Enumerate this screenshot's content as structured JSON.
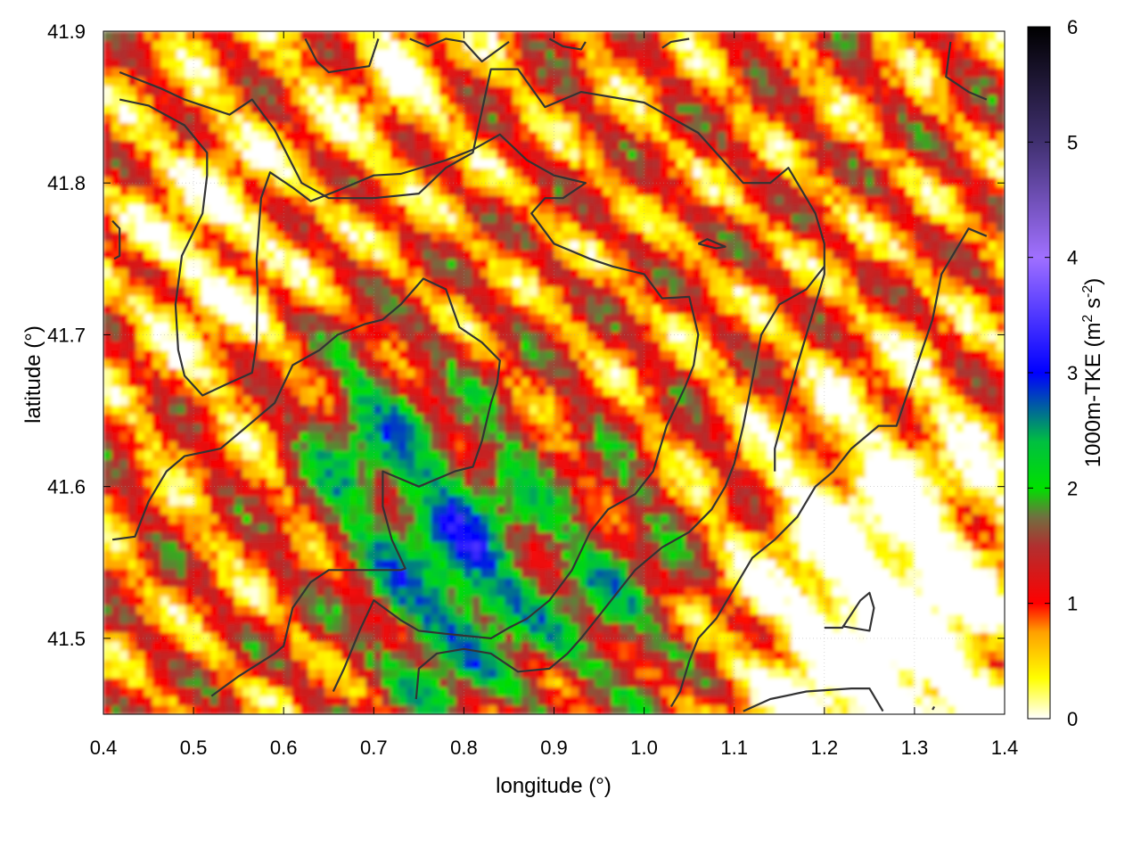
{
  "chart_data": {
    "type": "heatmap",
    "title": "",
    "xlabel": "longitude (°)",
    "ylabel": "latitude (°)",
    "colorbar_label": "1000m-TKE (m² s⁻²)",
    "colorbar_label_parts": [
      "1000m-TKE (m",
      "2",
      " s",
      "-2",
      ")"
    ],
    "xlim": [
      0.4,
      1.4
    ],
    "ylim": [
      41.45,
      41.9
    ],
    "x_ticks": [
      0.4,
      0.5,
      0.6,
      0.7,
      0.8,
      0.9,
      1.0,
      1.1,
      1.2,
      1.3,
      1.4
    ],
    "y_ticks": [
      41.5,
      41.6,
      41.7,
      41.8,
      41.9
    ],
    "x_tick_labels": [
      "0.4",
      "0.5",
      "0.6",
      "0.7",
      "0.8",
      "0.9",
      "1.0",
      "1.1",
      "1.2",
      "1.3",
      "1.4"
    ],
    "y_tick_labels": [
      "41.5",
      "41.6",
      "41.7",
      "41.8",
      "41.9"
    ],
    "colorbar_range": [
      0,
      6
    ],
    "colorbar_ticks": [
      0,
      1,
      2,
      3,
      4,
      5,
      6
    ],
    "colorbar_tick_labels": [
      "0",
      "1",
      "2",
      "3",
      "4",
      "5",
      "6"
    ],
    "colormap_stops": [
      {
        "value": 0.0,
        "color": "#ffffff"
      },
      {
        "value": 0.35,
        "color": "#ffff00"
      },
      {
        "value": 0.75,
        "color": "#ffa000"
      },
      {
        "value": 1.0,
        "color": "#ff0000"
      },
      {
        "value": 1.5,
        "color": "#b03030"
      },
      {
        "value": 1.75,
        "color": "#707040"
      },
      {
        "value": 2.0,
        "color": "#00e000"
      },
      {
        "value": 2.4,
        "color": "#00c040"
      },
      {
        "value": 3.0,
        "color": "#0000ff"
      },
      {
        "value": 4.0,
        "color": "#a070ff"
      },
      {
        "value": 5.0,
        "color": "#403070"
      },
      {
        "value": 6.0,
        "color": "#000000"
      }
    ],
    "grid": true,
    "contour_color": "#333333",
    "contours": [
      [
        [
          0.418,
          41.873
        ],
        [
          0.465,
          41.862
        ],
        [
          0.49,
          41.855
        ],
        [
          0.54,
          41.845
        ],
        [
          0.565,
          41.855
        ],
        [
          0.59,
          41.835
        ],
        [
          0.62,
          41.8
        ],
        [
          0.65,
          41.79
        ],
        [
          0.7,
          41.79
        ],
        [
          0.75,
          41.793
        ],
        [
          0.78,
          41.81
        ],
        [
          0.81,
          41.82
        ],
        [
          0.83,
          41.875
        ],
        [
          0.86,
          41.875
        ],
        [
          0.89,
          41.85
        ],
        [
          0.93,
          41.86
        ],
        [
          1.0,
          41.853
        ],
        [
          1.06,
          41.833
        ],
        [
          1.11,
          41.8
        ],
        [
          1.14,
          41.8
        ],
        [
          1.16,
          41.81
        ],
        [
          1.19,
          41.78
        ],
        [
          1.2,
          41.76
        ],
        [
          1.2,
          41.74
        ],
        [
          1.17,
          41.68
        ],
        [
          1.145,
          41.625
        ],
        [
          1.145,
          41.61
        ]
      ],
      [
        [
          0.418,
          41.855
        ],
        [
          0.45,
          41.851
        ],
        [
          0.49,
          41.838
        ],
        [
          0.515,
          41.82
        ],
        [
          0.515,
          41.805
        ],
        [
          0.51,
          41.78
        ],
        [
          0.487,
          41.752
        ],
        [
          0.48,
          41.72
        ],
        [
          0.483,
          41.69
        ],
        [
          0.49,
          41.673
        ],
        [
          0.51,
          41.66
        ],
        [
          0.535,
          41.667
        ],
        [
          0.565,
          41.675
        ],
        [
          0.57,
          41.695
        ],
        [
          0.571,
          41.73
        ],
        [
          0.57,
          41.75
        ],
        [
          0.575,
          41.79
        ],
        [
          0.585,
          41.807
        ],
        [
          0.61,
          41.797
        ],
        [
          0.63,
          41.788
        ],
        [
          0.66,
          41.795
        ],
        [
          0.7,
          41.805
        ],
        [
          0.73,
          41.806
        ],
        [
          0.78,
          41.815
        ],
        [
          0.81,
          41.822
        ],
        [
          0.84,
          41.832
        ],
        [
          0.87,
          41.815
        ],
        [
          0.9,
          41.805
        ],
        [
          0.935,
          41.8
        ],
        [
          0.91,
          41.79
        ],
        [
          0.89,
          41.79
        ],
        [
          0.875,
          41.78
        ],
        [
          0.9,
          41.76
        ],
        [
          0.94,
          41.75
        ],
        [
          0.965,
          41.745
        ],
        [
          1.0,
          41.74
        ],
        [
          1.02,
          41.724
        ],
        [
          1.05,
          41.725
        ],
        [
          1.06,
          41.7
        ],
        [
          1.055,
          41.68
        ],
        [
          1.045,
          41.665
        ],
        [
          1.025,
          41.64
        ],
        [
          1.01,
          41.61
        ],
        [
          0.99,
          41.595
        ],
        [
          0.96,
          41.585
        ],
        [
          0.94,
          41.57
        ],
        [
          0.92,
          41.545
        ],
        [
          0.895,
          41.525
        ],
        [
          0.87,
          41.513
        ],
        [
          0.85,
          41.507
        ],
        [
          0.83,
          41.5
        ],
        [
          0.78,
          41.503
        ],
        [
          0.75,
          41.505
        ],
        [
          0.73,
          41.512
        ],
        [
          0.7,
          41.525
        ],
        [
          0.685,
          41.506
        ],
        [
          0.667,
          41.48
        ],
        [
          0.655,
          41.465
        ]
      ],
      [
        [
          0.41,
          41.565
        ],
        [
          0.435,
          41.567
        ],
        [
          0.45,
          41.59
        ],
        [
          0.47,
          41.61
        ],
        [
          0.49,
          41.62
        ],
        [
          0.53,
          41.625
        ],
        [
          0.56,
          41.64
        ],
        [
          0.59,
          41.655
        ],
        [
          0.61,
          41.68
        ],
        [
          0.64,
          41.69
        ],
        [
          0.66,
          41.7
        ],
        [
          0.69,
          41.707
        ],
        [
          0.71,
          41.71
        ],
        [
          0.73,
          41.72
        ],
        [
          0.755,
          41.737
        ],
        [
          0.78,
          41.73
        ],
        [
          0.795,
          41.705
        ],
        [
          0.82,
          41.695
        ],
        [
          0.84,
          41.683
        ],
        [
          0.837,
          41.668
        ],
        [
          0.83,
          41.655
        ],
        [
          0.82,
          41.63
        ],
        [
          0.81,
          41.613
        ],
        [
          0.79,
          41.61
        ],
        [
          0.75,
          41.6
        ],
        [
          0.71,
          41.61
        ],
        [
          0.71,
          41.587
        ],
        [
          0.72,
          41.565
        ],
        [
          0.735,
          41.546
        ],
        [
          0.73,
          41.545
        ],
        [
          0.68,
          41.545
        ],
        [
          0.65,
          41.545
        ],
        [
          0.63,
          41.537
        ],
        [
          0.61,
          41.52
        ],
        [
          0.6,
          41.495
        ],
        [
          0.59,
          41.49
        ],
        [
          0.55,
          41.475
        ],
        [
          0.52,
          41.462
        ]
      ],
      [
        [
          0.747,
          41.46
        ],
        [
          0.75,
          41.48
        ],
        [
          0.77,
          41.49
        ],
        [
          0.8,
          41.493
        ],
        [
          0.83,
          41.49
        ],
        [
          0.86,
          41.478
        ],
        [
          0.895,
          41.48
        ],
        [
          0.915,
          41.49
        ],
        [
          0.93,
          41.5
        ],
        [
          0.95,
          41.515
        ],
        [
          0.97,
          41.53
        ],
        [
          0.99,
          41.545
        ],
        [
          1.02,
          41.56
        ],
        [
          1.05,
          41.57
        ],
        [
          1.075,
          41.585
        ],
        [
          1.09,
          41.6
        ],
        [
          1.1,
          41.615
        ],
        [
          1.11,
          41.64
        ],
        [
          1.12,
          41.67
        ],
        [
          1.13,
          41.7
        ],
        [
          1.15,
          41.72
        ],
        [
          1.18,
          41.73
        ],
        [
          1.2,
          41.745
        ]
      ],
      [
        [
          1.03,
          41.455
        ],
        [
          1.04,
          41.465
        ],
        [
          1.05,
          41.485
        ],
        [
          1.06,
          41.5
        ],
        [
          1.08,
          41.513
        ],
        [
          1.1,
          41.533
        ],
        [
          1.12,
          41.553
        ],
        [
          1.145,
          41.565
        ],
        [
          1.17,
          41.58
        ],
        [
          1.19,
          41.6
        ],
        [
          1.21,
          41.61
        ],
        [
          1.23,
          41.625
        ],
        [
          1.26,
          41.64
        ],
        [
          1.28,
          41.64
        ],
        [
          1.3,
          41.675
        ],
        [
          1.32,
          41.71
        ],
        [
          1.33,
          41.74
        ],
        [
          1.36,
          41.77
        ],
        [
          1.38,
          41.765
        ]
      ],
      [
        [
          1.11,
          41.452
        ],
        [
          1.14,
          41.46
        ],
        [
          1.18,
          41.465
        ],
        [
          1.23,
          41.467
        ],
        [
          1.25,
          41.467
        ],
        [
          1.265,
          41.452
        ]
      ],
      [
        [
          1.2,
          41.507
        ],
        [
          1.22,
          41.507
        ],
        [
          1.24,
          41.525
        ],
        [
          1.25,
          41.53
        ],
        [
          1.255,
          41.52
        ],
        [
          1.25,
          41.505
        ],
        [
          1.22,
          41.508
        ]
      ],
      [
        [
          0.74,
          41.895
        ],
        [
          0.76,
          41.89
        ],
        [
          0.78,
          41.895
        ],
        [
          0.8,
          41.893
        ],
        [
          0.82,
          41.88
        ],
        [
          0.85,
          41.893
        ]
      ],
      [
        [
          0.624,
          41.895
        ],
        [
          0.637,
          41.88
        ],
        [
          0.65,
          41.873
        ],
        [
          0.695,
          41.877
        ],
        [
          0.705,
          41.895
        ]
      ],
      [
        [
          0.895,
          41.895
        ],
        [
          0.91,
          41.89
        ],
        [
          0.93,
          41.888
        ],
        [
          0.935,
          41.893
        ]
      ],
      [
        [
          1.02,
          41.889
        ],
        [
          1.03,
          41.893
        ],
        [
          1.05,
          41.895
        ]
      ],
      [
        [
          1.34,
          41.893
        ],
        [
          1.335,
          41.87
        ],
        [
          1.36,
          41.86
        ],
        [
          1.38,
          41.855
        ]
      ],
      [
        [
          0.41,
          41.775
        ],
        [
          0.418,
          41.77
        ],
        [
          0.418,
          41.752
        ],
        [
          0.412,
          41.75
        ]
      ],
      [
        [
          1.06,
          41.76
        ],
        [
          1.08,
          41.757
        ],
        [
          1.09,
          41.758
        ],
        [
          1.07,
          41.763
        ],
        [
          1.06,
          41.76
        ]
      ],
      [
        [
          1.32,
          41.453
        ],
        [
          1.322,
          41.455
        ]
      ]
    ]
  }
}
